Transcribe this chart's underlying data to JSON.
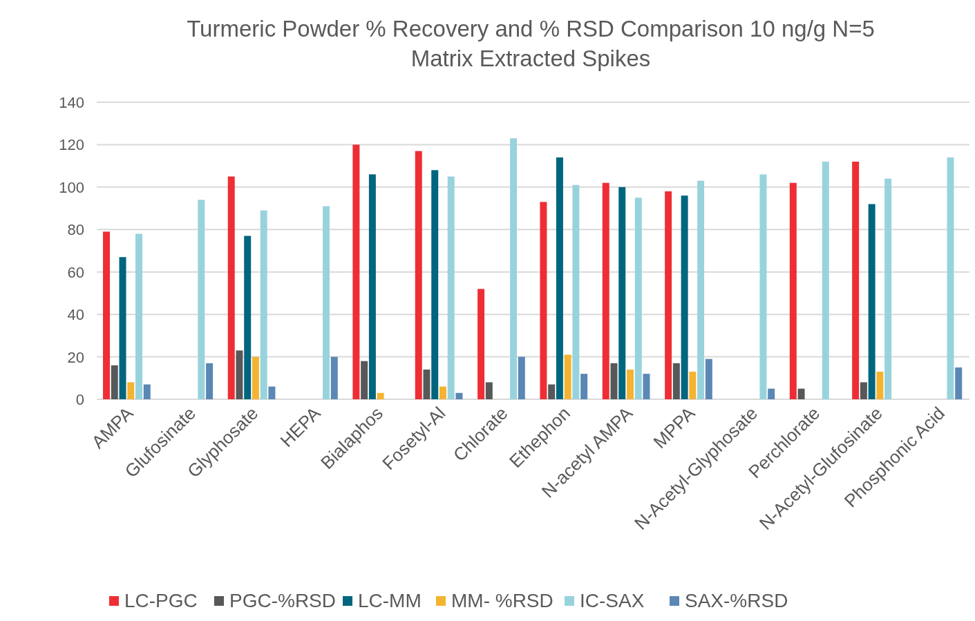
{
  "chart_data": {
    "type": "bar",
    "title": "Turmeric Powder % Recovery and % RSD Comparison 10 ng/g N=5 Matrix Extracted Spikes",
    "categories": [
      "AMPA",
      "Glufosinate",
      "Glyphosate",
      "HEPA",
      "Bialaphos",
      "Fosetyl-Al",
      "Chlorate",
      "Ethephon",
      "N-acetyl AMPA",
      "MPPA",
      "N-Acetyl-Glyphosate",
      "Perchlorate",
      "N-Acetyl-Glufosinate",
      "Phosphonic Acid"
    ],
    "series": [
      {
        "name": "LC-PGC",
        "color": "#ee2e34",
        "values": [
          79,
          0,
          105,
          0,
          120,
          117,
          52,
          93,
          102,
          98,
          0,
          102,
          112,
          0
        ]
      },
      {
        "name": "PGC-%RSD",
        "color": "#56585a",
        "values": [
          16,
          0,
          23,
          0,
          18,
          14,
          8,
          7,
          17,
          17,
          0,
          5,
          8,
          0
        ]
      },
      {
        "name": "LC-MM",
        "color": "#00657e",
        "values": [
          67,
          0,
          77,
          0,
          106,
          108,
          0,
          114,
          100,
          96,
          0,
          0,
          92,
          0
        ]
      },
      {
        "name": "MM- %RSD",
        "color": "#f4b331",
        "values": [
          8,
          0,
          20,
          0,
          3,
          6,
          0,
          21,
          14,
          13,
          0,
          0,
          13,
          0
        ]
      },
      {
        "name": "IC-SAX",
        "color": "#98d3dd",
        "values": [
          78,
          94,
          89,
          91,
          0,
          105,
          123,
          101,
          95,
          103,
          106,
          112,
          104,
          114
        ]
      },
      {
        "name": "SAX-%RSD",
        "color": "#5b87b5",
        "values": [
          7,
          17,
          6,
          20,
          0,
          3,
          20,
          12,
          12,
          19,
          5,
          0,
          0,
          15
        ]
      }
    ],
    "ylim": [
      0,
      140
    ],
    "yticks": [
      0,
      20,
      40,
      60,
      80,
      100,
      120,
      140
    ],
    "grid": "y",
    "legend": "bottom"
  }
}
